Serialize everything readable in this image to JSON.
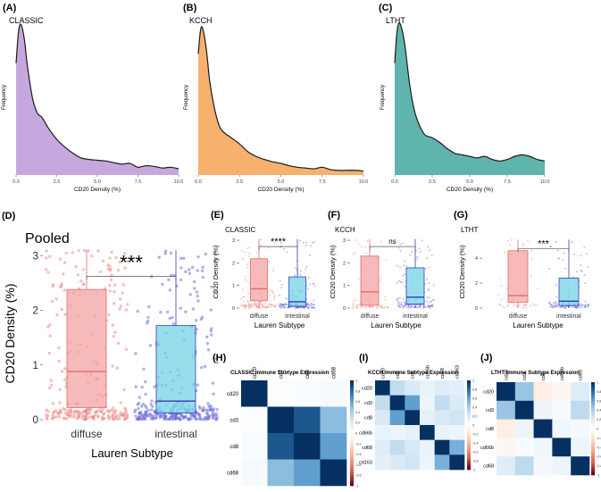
{
  "chart_data": [
    {
      "id": "A",
      "type": "area",
      "panel_label": "(A)",
      "title": "CLASSIC",
      "xlabel": "CD20 Density (%)",
      "ylabel": "Frequency",
      "xlim": [
        0,
        10
      ],
      "ylim": [
        0,
        1
      ],
      "xticks": [
        "0.0",
        "2.5",
        "5.0",
        "7.5",
        "10.0"
      ],
      "fill": "#c6a8df",
      "line": "#1a1a1a",
      "x": [
        0,
        0.15,
        0.3,
        0.5,
        0.7,
        1.0,
        1.3,
        1.6,
        2.0,
        2.5,
        3.0,
        3.5,
        4.0,
        4.5,
        5.0,
        5.5,
        6.0,
        6.5,
        7.0,
        7.5,
        8.0,
        8.5,
        9.0,
        9.5,
        10.0
      ],
      "values": [
        0.72,
        0.92,
        0.97,
        0.88,
        0.7,
        0.5,
        0.4,
        0.37,
        0.3,
        0.23,
        0.18,
        0.14,
        0.11,
        0.1,
        0.095,
        0.09,
        0.08,
        0.07,
        0.075,
        0.05,
        0.06,
        0.055,
        0.045,
        0.05,
        0.04
      ]
    },
    {
      "id": "B",
      "type": "area",
      "panel_label": "(B)",
      "title": "KCCH",
      "xlabel": "CD20 Density (%)",
      "ylabel": "Frequency",
      "xlim": [
        0,
        10
      ],
      "ylim": [
        0,
        1
      ],
      "xticks": [
        "0.0",
        "2.5",
        "5.0",
        "7.5",
        "10.0"
      ],
      "fill": "#f5b16d",
      "line": "#1a1a1a",
      "x": [
        0,
        0.15,
        0.3,
        0.5,
        0.7,
        1.0,
        1.3,
        1.6,
        2.0,
        2.5,
        3.0,
        3.5,
        4.0,
        4.5,
        5.0,
        5.5,
        6.0,
        6.5,
        7.0,
        7.5,
        8.0,
        8.5,
        9.0,
        9.5,
        10.0
      ],
      "values": [
        0.78,
        0.94,
        0.93,
        0.8,
        0.6,
        0.42,
        0.31,
        0.27,
        0.24,
        0.2,
        0.15,
        0.12,
        0.1,
        0.085,
        0.075,
        0.06,
        0.05,
        0.045,
        0.04,
        0.05,
        0.035,
        0.03,
        0.03,
        0.03,
        0.025
      ]
    },
    {
      "id": "C",
      "type": "area",
      "panel_label": "(C)",
      "title": "LTHT",
      "xlabel": "CD20 Density (%)",
      "ylabel": "Frequency",
      "xlim": [
        0,
        10
      ],
      "ylim": [
        0,
        1
      ],
      "xticks": [
        "0.0",
        "2.5",
        "5.0",
        "7.5",
        "10.0"
      ],
      "fill": "#5fb5ad",
      "line": "#1a1a1a",
      "x": [
        0,
        0.15,
        0.3,
        0.5,
        0.7,
        1.0,
        1.3,
        1.6,
        2.0,
        2.5,
        3.0,
        3.5,
        4.0,
        4.5,
        5.0,
        5.5,
        6.0,
        6.5,
        7.0,
        7.5,
        8.0,
        8.5,
        9.0,
        9.5,
        10.0
      ],
      "values": [
        0.72,
        0.92,
        0.98,
        0.93,
        0.82,
        0.58,
        0.42,
        0.33,
        0.26,
        0.24,
        0.21,
        0.17,
        0.14,
        0.13,
        0.12,
        0.11,
        0.12,
        0.1,
        0.09,
        0.1,
        0.12,
        0.13,
        0.12,
        0.1,
        0.09
      ]
    },
    {
      "id": "D",
      "type": "box",
      "panel_label": "(D)",
      "title": "Pooled",
      "xlabel": "Lauren Subtype",
      "ylabel": "CD20 Density (%)",
      "categories": [
        "diffuse",
        "intestinal"
      ],
      "ylim": [
        0,
        3.15
      ],
      "yticks": [
        0,
        1,
        2,
        3
      ],
      "colors": [
        "#f4a3a3",
        "#74d3e6"
      ],
      "point_colors": [
        "#f08a8a",
        "#6f6fd8"
      ],
      "box": [
        {
          "q1": 0.22,
          "median": 0.88,
          "q3": 2.38,
          "whisker_low": 0,
          "whisker_high": 3.1
        },
        {
          "q1": 0.12,
          "median": 0.34,
          "q3": 1.72,
          "whisker_low": 0,
          "whisker_high": 3.1
        }
      ],
      "n_points": [
        260,
        320
      ],
      "significance": "***",
      "bracket_y": 2.62
    },
    {
      "id": "E",
      "type": "box",
      "panel_label": "(E)",
      "title": "CLASSIC",
      "xlabel": "Lauren Subtype",
      "ylabel": "CD20 Density (%)",
      "categories": [
        "diffuse",
        "intestinal"
      ],
      "ylim": [
        0,
        3.2
      ],
      "yticks": [
        0,
        1,
        2,
        3
      ],
      "colors": [
        "#f4a3a3",
        "#74d3e6"
      ],
      "point_colors": [
        "#f08a8a",
        "#6f6fd8"
      ],
      "box": [
        {
          "q1": 0.32,
          "median": 0.85,
          "q3": 2.18,
          "whisker_low": 0,
          "whisker_high": 3.05
        },
        {
          "q1": 0.08,
          "median": 0.28,
          "q3": 1.38,
          "whisker_low": 0,
          "whisker_high": 3.05
        }
      ],
      "n_points": [
        140,
        170
      ],
      "significance": "****",
      "bracket_y": 2.72
    },
    {
      "id": "F",
      "type": "box",
      "panel_label": "(F)",
      "title": "KCCH",
      "xlabel": "Lauren Subtype",
      "ylabel": "CD20 Density (%)",
      "categories": [
        "diffuse",
        "intestinal"
      ],
      "ylim": [
        0,
        3.2
      ],
      "yticks": [
        0,
        1,
        2,
        3
      ],
      "colors": [
        "#f4a3a3",
        "#74d3e6"
      ],
      "point_colors": [
        "#f08a8a",
        "#6f6fd8"
      ],
      "box": [
        {
          "q1": 0.12,
          "median": 0.72,
          "q3": 2.3,
          "whisker_low": 0,
          "whisker_high": 3.05
        },
        {
          "q1": 0.18,
          "median": 0.48,
          "q3": 1.78,
          "whisker_low": 0,
          "whisker_high": 3.05
        }
      ],
      "n_points": [
        70,
        140
      ],
      "significance": "ns",
      "bracket_y": 2.72
    },
    {
      "id": "G",
      "type": "box",
      "panel_label": "(G)",
      "title": "LTHT",
      "xlabel": "Lauren Subtype",
      "ylabel": "CD20 Density (%)",
      "categories": [
        "diffuse",
        "intestinal"
      ],
      "ylim": [
        0,
        5.8
      ],
      "yticks": [
        0,
        2,
        4
      ],
      "colors": [
        "#f4a3a3",
        "#74d3e6"
      ],
      "point_colors": [
        "#f08a8a",
        "#6f6fd8"
      ],
      "box": [
        {
          "q1": 0.45,
          "median": 1.0,
          "q3": 4.6,
          "whisker_low": 0,
          "whisker_high": 5.5
        },
        {
          "q1": 0.2,
          "median": 0.55,
          "q3": 2.4,
          "whisker_low": 0,
          "whisker_high": 5.5
        }
      ],
      "n_points": [
        45,
        130
      ],
      "significance": "***",
      "bracket_y": 4.75
    },
    {
      "id": "H",
      "type": "heatmap",
      "panel_label": "(H)",
      "title": "CLASSIC Immune Subtype Expression",
      "labels": [
        "cd20",
        "cd3",
        "cd8",
        "cd68"
      ],
      "legend_ticks": [
        "1",
        "0.8",
        "0.6",
        "0.4",
        "0.2",
        "0",
        "-0.2",
        "-0.4",
        "-0.6",
        "-0.8",
        "-1"
      ],
      "matrix": [
        [
          1.0,
          0.02,
          0.03,
          0.05
        ],
        [
          0.02,
          1.0,
          0.88,
          0.5
        ],
        [
          0.03,
          0.88,
          1.0,
          0.62
        ],
        [
          0.05,
          0.5,
          0.62,
          1.0
        ]
      ]
    },
    {
      "id": "I",
      "type": "heatmap",
      "panel_label": "(I)",
      "title": "KCCH Immune Subtype Expression",
      "labels": [
        "cd20",
        "cd3",
        "cd8",
        "cd66b",
        "cd68",
        "cd163"
      ],
      "legend_ticks": [
        "1",
        "0.8",
        "0.6",
        "0.4",
        "0.2",
        "0",
        "-0.2",
        "-0.4",
        "-0.6",
        "-0.8",
        "-1"
      ],
      "matrix": [
        [
          1.0,
          0.3,
          0.2,
          0.12,
          0.18,
          0.15
        ],
        [
          0.3,
          1.0,
          0.62,
          0.1,
          0.3,
          0.2
        ],
        [
          0.2,
          0.62,
          1.0,
          0.14,
          0.22,
          0.25
        ],
        [
          0.12,
          0.1,
          0.14,
          1.0,
          0.12,
          0.1
        ],
        [
          0.18,
          0.3,
          0.22,
          0.12,
          1.0,
          0.55
        ],
        [
          0.15,
          0.2,
          0.25,
          0.1,
          0.55,
          1.0
        ]
      ]
    },
    {
      "id": "J",
      "type": "heatmap",
      "panel_label": "(J)",
      "title": "LTHT Immune Subtype Expression",
      "labels": [
        "cd20",
        "cd3",
        "cd8",
        "cd66b",
        "cd68"
      ],
      "legend_ticks": [
        "1",
        "0.8",
        "0.6",
        "0.4",
        "0.2",
        "0",
        "-0.2",
        "-0.4",
        "-0.6",
        "-0.8",
        "-1"
      ],
      "matrix": [
        [
          1.0,
          0.45,
          -0.12,
          -0.06,
          0.18
        ],
        [
          0.45,
          1.0,
          0.1,
          0.04,
          0.32
        ],
        [
          -0.12,
          0.1,
          1.0,
          0.08,
          0.06
        ],
        [
          -0.06,
          0.04,
          0.08,
          1.0,
          0.1
        ],
        [
          0.18,
          0.32,
          0.06,
          0.1,
          1.0
        ]
      ]
    }
  ]
}
